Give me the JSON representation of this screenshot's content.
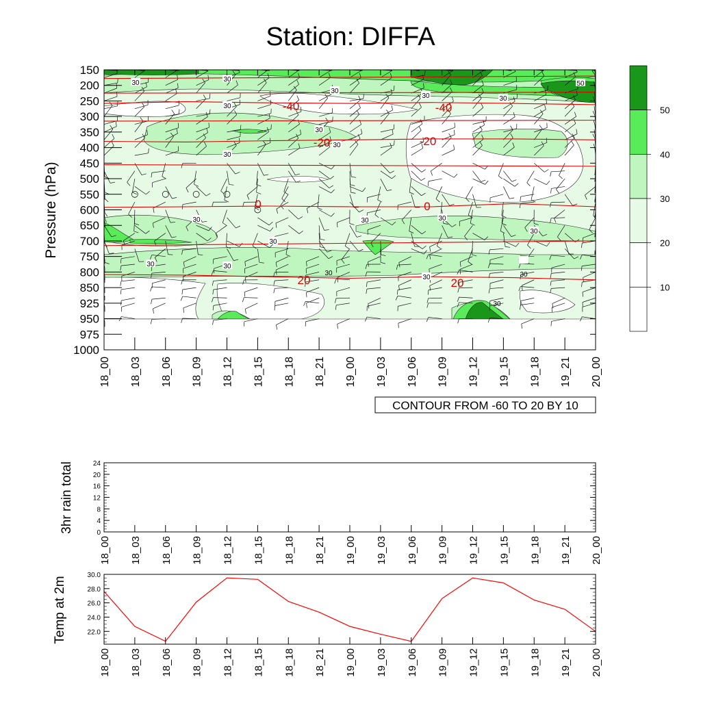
{
  "title": "Station: DIFFA",
  "chart_data": [
    {
      "type": "heatmap",
      "ylabel": "Pressure (hPa)",
      "y_ticks": [
        150,
        200,
        250,
        300,
        350,
        400,
        450,
        500,
        550,
        600,
        650,
        700,
        750,
        800,
        850,
        925,
        950,
        975,
        1000
      ],
      "x_ticks": [
        "18_00",
        "18_03",
        "18_06",
        "18_09",
        "18_12",
        "18_15",
        "18_18",
        "18_21",
        "19_00",
        "19_03",
        "19_06",
        "19_09",
        "19_12",
        "19_15",
        "19_18",
        "19_21",
        "20_00"
      ],
      "colorbar_labels": [
        "10",
        "20",
        "30",
        "40",
        "50"
      ],
      "colorbar_colors": [
        "#ffffff",
        "#ffffff",
        "#e6fae6",
        "#bff5bf",
        "#59eb59",
        "#1a961a"
      ],
      "contour_note": "CONTOUR FROM -60 TO 20 BY 10",
      "temperature_contours": [
        {
          "label": "-40",
          "levels_hpa": [
            258,
            252,
            256,
            258,
            255,
            258,
            262
          ]
        },
        {
          "label": "-20",
          "levels_hpa": [
            380,
            382,
            378,
            375,
            372,
            372,
            375
          ]
        },
        {
          "label": "0",
          "levels_hpa": [
            592,
            590,
            588,
            590,
            590,
            580,
            590
          ]
        },
        {
          "label": "20",
          "levels_hpa": [
            808,
            810,
            815,
            820,
            815,
            818,
            825
          ]
        }
      ],
      "contour_labels": {
        "red": [
          "-40",
          "-40",
          "-20",
          "-20",
          "0",
          "0",
          "20",
          "20"
        ],
        "humidity": [
          "30",
          "30",
          "30",
          "30",
          "30",
          "30",
          "30",
          "30",
          "30",
          "30",
          "30",
          "30",
          "30",
          "30",
          "30",
          "30",
          "30",
          "50"
        ]
      }
    },
    {
      "type": "line",
      "ylabel": "3hr rain total",
      "y_ticks": [
        0,
        4,
        8,
        12,
        16,
        20,
        24
      ],
      "ylim": [
        0,
        24
      ],
      "x_ticks": [
        "18_00",
        "18_03",
        "18_06",
        "18_09",
        "18_12",
        "18_15",
        "18_18",
        "18_21",
        "19_00",
        "19_03",
        "19_06",
        "19_09",
        "19_12",
        "19_15",
        "19_18",
        "19_21",
        "20_00"
      ],
      "values": []
    },
    {
      "type": "line",
      "ylabel": "Temp at 2m",
      "y_ticks": [
        "22.0",
        "24.0",
        "26.0",
        "28.0",
        "30.0"
      ],
      "ylim": [
        20.2,
        30
      ],
      "x_ticks": [
        "18_00",
        "18_03",
        "18_06",
        "18_09",
        "18_12",
        "18_15",
        "18_18",
        "18_21",
        "19_00",
        "19_03",
        "19_06",
        "19_09",
        "19_12",
        "19_15",
        "19_18",
        "19_21",
        "20_00"
      ],
      "values": [
        27.6,
        22.7,
        20.6,
        26.1,
        29.5,
        29.3,
        26.2,
        24.7,
        22.7,
        21.6,
        20.6,
        26.6,
        29.5,
        28.8,
        26.4,
        25.1,
        22.0
      ],
      "line_color": "#ff0000"
    }
  ]
}
